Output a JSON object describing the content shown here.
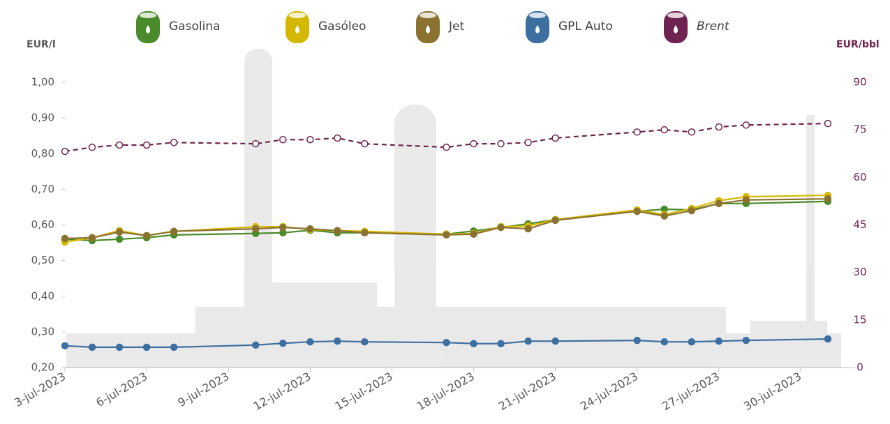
{
  "chart_data": {
    "type": "line",
    "y_label": "EUR/l",
    "y2_label": "EUR/bbl",
    "x": [
      "2023-07-03",
      "2023-07-04",
      "2023-07-05",
      "2023-07-06",
      "2023-07-07",
      "2023-07-10",
      "2023-07-11",
      "2023-07-12",
      "2023-07-13",
      "2023-07-14",
      "2023-07-17",
      "2023-07-18",
      "2023-07-19",
      "2023-07-20",
      "2023-07-21",
      "2023-07-24",
      "2023-07-25",
      "2023-07-26",
      "2023-07-27",
      "2023-07-28",
      "2023-07-31"
    ],
    "xlim": [
      "2023-07-03",
      "2023-08-01"
    ],
    "xticks": [
      {
        "value": "2023-07-03",
        "label": "3-jul-2023"
      },
      {
        "value": "2023-07-06",
        "label": "6-jul-2023"
      },
      {
        "value": "2023-07-09",
        "label": "9-jul-2023"
      },
      {
        "value": "2023-07-12",
        "label": "12-jul-2023"
      },
      {
        "value": "2023-07-15",
        "label": "15-jul-2023"
      },
      {
        "value": "2023-07-18",
        "label": "18-jul-2023"
      },
      {
        "value": "2023-07-21",
        "label": "21-jul-2023"
      },
      {
        "value": "2023-07-24",
        "label": "24-jul-2023"
      },
      {
        "value": "2023-07-27",
        "label": "27-jul-2023"
      },
      {
        "value": "2023-07-30",
        "label": "30-jul-2023"
      }
    ],
    "ylim": [
      0.2,
      1.0
    ],
    "yticks": [
      {
        "value": 0.2,
        "label": "0,20"
      },
      {
        "value": 0.3,
        "label": "0,30"
      },
      {
        "value": 0.4,
        "label": "0,40"
      },
      {
        "value": 0.5,
        "label": "0,50"
      },
      {
        "value": 0.6,
        "label": "0,60"
      },
      {
        "value": 0.7,
        "label": "0,70"
      },
      {
        "value": 0.8,
        "label": "0,80"
      },
      {
        "value": 0.9,
        "label": "0,90"
      },
      {
        "value": 1.0,
        "label": "1,00"
      }
    ],
    "y2lim": [
      0,
      90
    ],
    "y2ticks": [
      0,
      15,
      30,
      45,
      60,
      75,
      90
    ],
    "series": [
      {
        "name": "Gasolina",
        "color": "#4a8a2a",
        "values": [
          0.56,
          0.556,
          0.56,
          0.564,
          0.572,
          0.576,
          0.578,
          0.585,
          0.578,
          0.578,
          0.574,
          0.583,
          0.593,
          0.603,
          0.615,
          0.638,
          0.644,
          0.642,
          0.66,
          0.66,
          0.666
        ]
      },
      {
        "name": "Gasóleo",
        "color": "#d4b800",
        "values": [
          0.552,
          0.564,
          0.584,
          0.57,
          0.582,
          0.595,
          0.595,
          0.587,
          0.584,
          0.582,
          0.574,
          0.576,
          0.595,
          0.597,
          0.615,
          0.642,
          0.629,
          0.646,
          0.668,
          0.679,
          0.683
        ]
      },
      {
        "name": "Jet",
        "color": "#8b7230",
        "values": [
          0.562,
          0.564,
          0.58,
          0.57,
          0.582,
          0.589,
          0.593,
          0.589,
          0.584,
          0.578,
          0.572,
          0.574,
          0.593,
          0.589,
          0.613,
          0.638,
          0.625,
          0.64,
          0.66,
          0.67,
          0.673
        ]
      },
      {
        "name": "GPL Auto",
        "color": "#3d6fa0",
        "values": [
          0.261,
          0.257,
          0.257,
          0.257,
          0.257,
          0.263,
          0.268,
          0.272,
          0.274,
          0.272,
          0.27,
          0.267,
          0.267,
          0.274,
          0.274,
          0.276,
          0.272,
          0.272,
          0.274,
          0.276,
          0.28
        ]
      },
      {
        "name": "Brent",
        "color": "#6e2350",
        "axis": "y2",
        "line_style": "dashed",
        "marker": "hollow",
        "values": [
          68.2,
          69.5,
          70.2,
          70.2,
          71.0,
          70.6,
          71.9,
          71.9,
          72.4,
          70.6,
          69.5,
          70.6,
          70.6,
          71.0,
          72.4,
          74.3,
          75.0,
          74.3,
          75.9,
          76.5,
          77.0
        ]
      }
    ]
  }
}
